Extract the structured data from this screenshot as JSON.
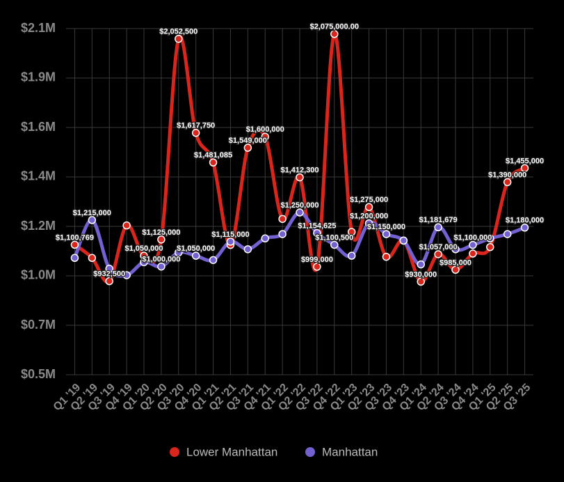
{
  "chart_data": {
    "type": "line",
    "categories": [
      "Q1 '19",
      "Q2 '19",
      "Q3 '19",
      "Q4 '19",
      "Q1 '20",
      "Q2 '20",
      "Q3 '20",
      "Q4 '20",
      "Q1 '21",
      "Q2 '21",
      "Q3 '21",
      "Q4 '21",
      "Q1 '22",
      "Q2 '22",
      "Q3 '22",
      "Q4 '22",
      "Q1 '23",
      "Q2 '23",
      "Q3 '23",
      "Q4 '23",
      "Q1 '24",
      "Q2 '24",
      "Q3 '24",
      "Q4 '24",
      "Q1 '25",
      "Q2 '25",
      "Q3 '25"
    ],
    "series": [
      {
        "name": "Lower Manhattan",
        "color": "#d9261c",
        "values": [
          1100769,
          1040000,
          932500,
          1190000,
          1050000,
          1125000,
          2052500,
          1617750,
          1481085,
          1100000,
          1549000,
          1600000,
          1220000,
          1412300,
          999000,
          2075000,
          1160000,
          1275000,
          1045000,
          1120000,
          930000,
          1057000,
          985000,
          1060000,
          1090000,
          1390000,
          1455000
        ],
        "value_labels": [
          "$1,100,769",
          null,
          "$932,500",
          null,
          "$1,050,000",
          "$1,125,000",
          "$2,052,500",
          "$1,617,750",
          "$1,481,085",
          null,
          "$1,549,000",
          "$1,600,000",
          null,
          "$1,412,300",
          "$999,000",
          "$2,075,000.00",
          null,
          "$1,275,000",
          null,
          null,
          "$930,000",
          "$1,057,000",
          "$985,000",
          null,
          null,
          "$1,390,000",
          "$1,455,000"
        ]
      },
      {
        "name": "Manhattan",
        "color": "#7461d1",
        "values": [
          1040000,
          1215000,
          990000,
          960000,
          1020000,
          1000000,
          1065000,
          1050000,
          1030000,
          1115000,
          1080000,
          1130000,
          1150000,
          1250000,
          1154625,
          1100500,
          1050000,
          1200000,
          1150000,
          1120000,
          1010000,
          1181679,
          1080000,
          1100000,
          1130000,
          1150000,
          1180000
        ],
        "value_labels": [
          null,
          "$1,215,000",
          null,
          null,
          null,
          "$1,000,000",
          null,
          "$1,050,000",
          null,
          "$1,115,000",
          null,
          null,
          null,
          "$1,250,000",
          "$1,154,625",
          "$1,100,500",
          null,
          "$1,200,000",
          "$1,150,000",
          null,
          null,
          "$1,181,679",
          null,
          "$1,100,000",
          null,
          null,
          "$1,180,000"
        ]
      }
    ],
    "ylim": [
      500000,
      2100000
    ],
    "yticks": [
      {
        "value": 500000,
        "label": "$0.5M"
      },
      {
        "value": 728571,
        "label": "$0.7M"
      },
      {
        "value": 957143,
        "label": "$1.0M"
      },
      {
        "value": 1185714,
        "label": "$1.2M"
      },
      {
        "value": 1414286,
        "label": "$1.4M"
      },
      {
        "value": 1642857,
        "label": "$1.6M"
      },
      {
        "value": 1871429,
        "label": "$1.9M"
      },
      {
        "value": 2100000,
        "label": "$2.1M"
      }
    ],
    "grid": true,
    "legend": "bottom"
  }
}
